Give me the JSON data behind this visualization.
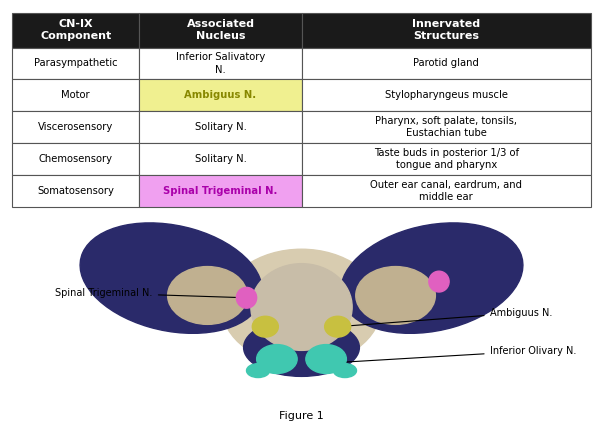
{
  "title": "Figure 1",
  "table": {
    "headers": [
      "CN-IX\nComponent",
      "Associated\nNucleus",
      "Innervated\nStructures"
    ],
    "rows": [
      [
        "Parasympathetic",
        "Inferior Salivatory\nN.",
        "Parotid gland"
      ],
      [
        "Motor",
        "Ambiguus N.",
        "Stylopharyngeus muscle"
      ],
      [
        "Viscerosensory",
        "Solitary N.",
        "Pharynx, soft palate, tonsils,\nEustachian tube"
      ],
      [
        "Chemosensory",
        "Solitary N.",
        "Taste buds in posterior 1/3 of\ntongue and pharynx"
      ],
      [
        "Somatosensory",
        "Spinal Trigeminal N.",
        "Outer ear canal, eardrum, and\nmiddle ear"
      ]
    ],
    "header_bg": "#1a1a1a",
    "header_fg": "#ffffff",
    "row_bg": "#ffffff",
    "highlight_motor_bg": "#f0f090",
    "highlight_motor_fg": "#888800",
    "highlight_somato_bg": "#f0a0f0",
    "highlight_somato_fg": "#aa00aa",
    "border_color": "#555555"
  },
  "annotations": [
    {
      "label": "Spinal Trigeminal N.",
      "side": "left"
    },
    {
      "label": "Ambiguus N.",
      "side": "right"
    },
    {
      "label": "Inferior Olivary N.",
      "side": "right"
    }
  ],
  "figure_label": "Figure 1"
}
